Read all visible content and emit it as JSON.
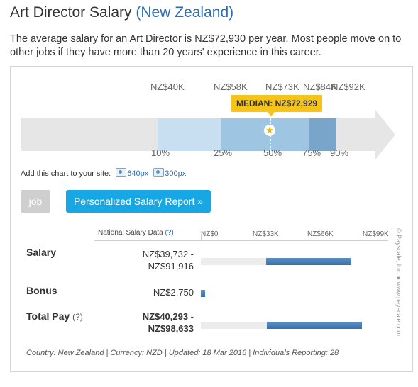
{
  "header": {
    "title": "Art Director Salary",
    "country": "(New Zealand)",
    "intro": "The average salary for an Art Director is NZ$72,930 per year. Most people move on to other jobs if they have more than 20 years' experience in this career."
  },
  "distribution": {
    "top_labels": [
      "NZ$40K",
      "NZ$58K",
      "NZ$73K",
      "NZ$84K",
      "NZ$92K"
    ],
    "bottom_labels": [
      "10%",
      "25%",
      "50%",
      "75%",
      "90%"
    ],
    "median_label": "MEDIAN: NZ$72,929",
    "colors": {
      "light": "#c7dff0",
      "mid": "#9ec5e2",
      "dark": "#7aa5cb",
      "track": "#e6e6e6",
      "median": "#f6c418"
    },
    "median_icon": "star-icon"
  },
  "embed": {
    "label": "Add this chart to your site:",
    "link_640": "640px",
    "link_300": "300px",
    "icon": "monitor-icon"
  },
  "buttons": {
    "job": "job",
    "report": "Personalized Salary Report »"
  },
  "table": {
    "header_label": "National Salary Data",
    "header_help": "(?)",
    "scale_ticks": [
      "NZ$0",
      "NZ$33K",
      "NZ$66K",
      "NZ$99K"
    ],
    "rows": [
      {
        "label": "Salary",
        "help": "",
        "value_line1": "NZ$39,732 -",
        "value_line2": "NZ$91,916",
        "bar_from": 39732,
        "bar_to": 91916
      },
      {
        "label": "Bonus",
        "help": "",
        "value_line1": "NZ$2,750",
        "value_line2": "",
        "bar_from": 0,
        "bar_to": 2750
      },
      {
        "label": "Total Pay",
        "help": "(?)",
        "value_line1": "NZ$40,293 -",
        "value_line2": "NZ$98,633",
        "bar_from": 40293,
        "bar_to": 98633
      }
    ],
    "scale_max": 99000
  },
  "footer": "Country: New Zealand | Currency: NZD | Updated: 18 Mar 2016 | Individuals Reporting: 28",
  "copyright": "© Payscale, Inc.  ●  www.payscale.com"
}
